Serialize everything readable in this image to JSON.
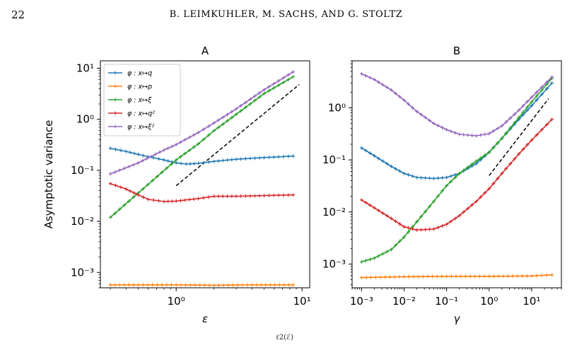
{
  "page": {
    "number": "22",
    "running_head": "B. LEIMKUHLER, M. SACHS, AND G. STOLTZ",
    "caption_fragment": "ℓ2(ℰ)"
  },
  "colors": {
    "blue": "#1f77b4",
    "orange": "#ff7f0e",
    "green": "#2ca02c",
    "red": "#d62728",
    "purple": "#9467bd"
  },
  "chart_data": [
    {
      "type": "line",
      "title": "A",
      "xlabel": "ε",
      "ylabel": "Asymptotic variance",
      "xscale": "log",
      "yscale": "log",
      "xlim": [
        0.25,
        11.5
      ],
      "ylim": [
        0.0005,
        14
      ],
      "xticks": [
        {
          "v": 1,
          "label": "10⁰"
        },
        {
          "v": 10,
          "label": "10¹"
        }
      ],
      "yticks": [
        {
          "v": 0.001,
          "label": "10⁻³"
        },
        {
          "v": 0.01,
          "label": "10⁻²"
        },
        {
          "v": 0.1,
          "label": "10⁻¹"
        },
        {
          "v": 1,
          "label": "10⁰"
        },
        {
          "v": 10,
          "label": "10¹"
        }
      ],
      "legend_position": "top-left",
      "series": [
        {
          "name": "φ : x↦q",
          "color": "#1f77b4",
          "x": [
            0.3,
            0.4,
            0.5,
            0.6,
            0.8,
            1.0,
            1.2,
            1.5,
            2.0,
            3.0,
            5.0,
            8.5
          ],
          "y": [
            0.27,
            0.235,
            0.205,
            0.185,
            0.16,
            0.14,
            0.133,
            0.137,
            0.15,
            0.165,
            0.178,
            0.19
          ]
        },
        {
          "name": "φ : x↦p",
          "color": "#ff7f0e",
          "x": [
            0.3,
            0.5,
            1.0,
            2.0,
            4.0,
            8.5
          ],
          "y": [
            0.00057,
            0.00057,
            0.00057,
            0.00056,
            0.00057,
            0.00057
          ]
        },
        {
          "name": "φ : x↦ξ",
          "color": "#2ca02c",
          "x": [
            0.3,
            0.5,
            1.0,
            1.5,
            2.0,
            3.0,
            5.0,
            8.5
          ],
          "y": [
            0.012,
            0.036,
            0.16,
            0.33,
            0.6,
            1.25,
            3.2,
            6.8
          ]
        },
        {
          "name": "φ : x↦q²",
          "color": "#d62728",
          "x": [
            0.3,
            0.4,
            0.5,
            0.6,
            0.8,
            1.0,
            1.5,
            2.0,
            3.0,
            5.0,
            8.5
          ],
          "y": [
            0.055,
            0.043,
            0.033,
            0.027,
            0.0245,
            0.025,
            0.028,
            0.031,
            0.031,
            0.032,
            0.033
          ]
        },
        {
          "name": "φ : x↦ξ²",
          "color": "#9467bd",
          "x": [
            0.3,
            0.5,
            0.8,
            1.0,
            1.5,
            2.0,
            3.0,
            5.0,
            8.5
          ],
          "y": [
            0.085,
            0.14,
            0.25,
            0.32,
            0.55,
            0.85,
            1.6,
            3.8,
            8.5
          ]
        }
      ],
      "reference_line": {
        "x": [
          1.0,
          9.5
        ],
        "y": [
          0.05,
          4.8
        ]
      }
    },
    {
      "type": "line",
      "title": "B",
      "xlabel": "γ",
      "ylabel": "",
      "xscale": "log",
      "yscale": "log",
      "xlim": [
        0.0006,
        50
      ],
      "ylim": [
        0.00035,
        8
      ],
      "xticks": [
        {
          "v": 0.001,
          "label": "10⁻³"
        },
        {
          "v": 0.01,
          "label": "10⁻²"
        },
        {
          "v": 0.1,
          "label": "10⁻¹"
        },
        {
          "v": 1,
          "label": "10⁰"
        },
        {
          "v": 10,
          "label": "10¹"
        }
      ],
      "yticks": [
        {
          "v": 0.001,
          "label": "10⁻³"
        },
        {
          "v": 0.01,
          "label": "10⁻²"
        },
        {
          "v": 0.1,
          "label": "10⁻¹"
        },
        {
          "v": 1,
          "label": "10⁰"
        }
      ],
      "series": [
        {
          "name": "φ : x↦q",
          "color": "#1f77b4",
          "x": [
            0.001,
            0.002,
            0.005,
            0.01,
            0.02,
            0.05,
            0.1,
            0.2,
            0.5,
            1,
            2,
            5,
            10,
            30
          ],
          "y": [
            0.17,
            0.12,
            0.075,
            0.055,
            0.046,
            0.044,
            0.046,
            0.055,
            0.085,
            0.14,
            0.26,
            0.6,
            1.1,
            3.0
          ]
        },
        {
          "name": "φ : x↦p",
          "color": "#ff7f0e",
          "x": [
            0.001,
            0.01,
            0.1,
            1,
            10,
            30
          ],
          "y": [
            0.00055,
            0.00057,
            0.00058,
            0.00058,
            0.00059,
            0.00062
          ]
        },
        {
          "name": "φ : x↦ξ",
          "color": "#2ca02c",
          "x": [
            0.001,
            0.002,
            0.005,
            0.01,
            0.02,
            0.05,
            0.1,
            0.2,
            0.5,
            1,
            2,
            5,
            10,
            30
          ],
          "y": [
            0.0011,
            0.0013,
            0.0019,
            0.0033,
            0.0065,
            0.016,
            0.032,
            0.055,
            0.095,
            0.14,
            0.26,
            0.65,
            1.3,
            3.7
          ]
        },
        {
          "name": "φ : x↦q²",
          "color": "#d62728",
          "x": [
            0.001,
            0.002,
            0.005,
            0.01,
            0.02,
            0.05,
            0.1,
            0.2,
            0.5,
            1,
            2,
            5,
            10,
            30
          ],
          "y": [
            0.017,
            0.012,
            0.0075,
            0.0052,
            0.0045,
            0.0047,
            0.0058,
            0.0085,
            0.016,
            0.028,
            0.055,
            0.13,
            0.24,
            0.6
          ]
        },
        {
          "name": "φ : x↦ξ²",
          "color": "#9467bd",
          "x": [
            0.001,
            0.002,
            0.005,
            0.01,
            0.02,
            0.05,
            0.1,
            0.2,
            0.5,
            1,
            2,
            5,
            10,
            30
          ],
          "y": [
            4.5,
            3.5,
            2.2,
            1.4,
            0.85,
            0.5,
            0.38,
            0.31,
            0.29,
            0.32,
            0.45,
            0.9,
            1.6,
            3.9
          ]
        }
      ],
      "reference_line": {
        "x": [
          1.0,
          25
        ],
        "y": [
          0.05,
          1.5
        ]
      }
    }
  ]
}
